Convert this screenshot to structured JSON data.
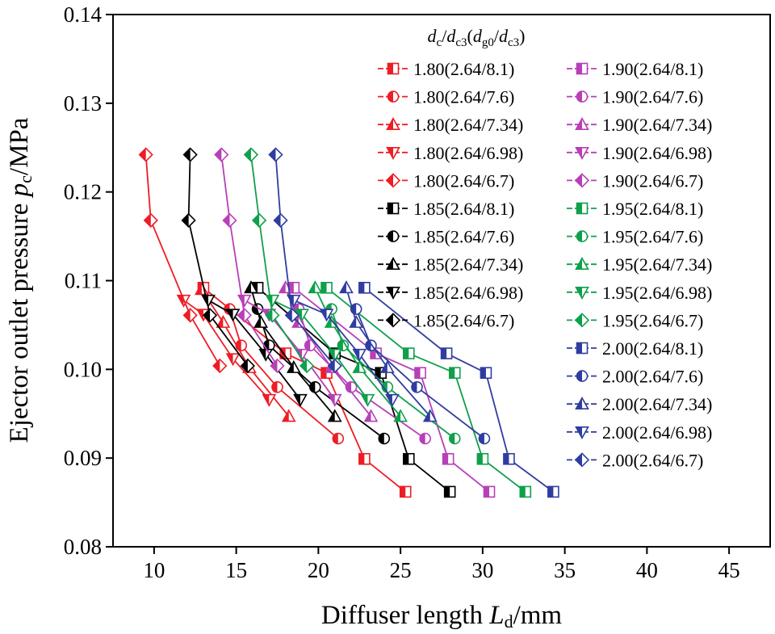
{
  "chart_data": {
    "type": "line",
    "xlabel_main": "Diffuser length ",
    "xlabel_var": "L",
    "xlabel_sub": "d",
    "xlabel_unit": "/mm",
    "ylabel_main": "Ejector outlet pressure ",
    "ylabel_var": "p",
    "ylabel_sub": "c",
    "ylabel_unit": "/MPa",
    "xlim": [
      7.5,
      47.5
    ],
    "ylim": [
      0.08,
      0.14
    ],
    "xticks": [
      10,
      15,
      20,
      25,
      30,
      35,
      40,
      45
    ],
    "yticks": [
      0.08,
      0.09,
      0.1,
      0.11,
      0.12,
      0.13,
      0.14
    ],
    "xtick_labels": [
      "10",
      "15",
      "20",
      "25",
      "30",
      "35",
      "40",
      "45"
    ],
    "ytick_labels": [
      "0.08",
      "0.09",
      "0.10",
      "0.11",
      "0.12",
      "0.13",
      "0.14"
    ],
    "legend_title": "dc/dc3(dg0/dc3)",
    "legend_title_parts": [
      "d",
      "c",
      "/",
      "d",
      "c3",
      "(",
      "d",
      "g0",
      "/",
      "d",
      "c3",
      ")"
    ],
    "colors": {
      "1.80": "#ee1c25",
      "1.85": "#000000",
      "1.90": "#b73fb7",
      "1.95": "#0fa04b",
      "2.00": "#2f3da0"
    },
    "series": [
      {
        "name": "1.80(2.64/8.1)",
        "group": "1.80",
        "marker": "square",
        "points": [
          [
            25.3,
            0.0862
          ],
          [
            22.8,
            0.0899
          ],
          [
            20.5,
            0.0996
          ],
          [
            18.0,
            0.1018
          ],
          [
            13.0,
            0.1092
          ]
        ]
      },
      {
        "name": "1.80(2.64/7.6)",
        "group": "1.80",
        "marker": "circle",
        "points": [
          [
            21.2,
            0.0922
          ],
          [
            17.5,
            0.098
          ],
          [
            15.3,
            0.1027
          ],
          [
            14.6,
            0.1068
          ]
        ]
      },
      {
        "name": "1.80(2.64/7.34)",
        "group": "1.80",
        "marker": "triangle-up",
        "points": [
          [
            18.2,
            0.0947
          ],
          [
            15.8,
            0.1002
          ],
          [
            14.2,
            0.1053
          ],
          [
            12.9,
            0.109
          ]
        ]
      },
      {
        "name": "1.80(2.64/6.98)",
        "group": "1.80",
        "marker": "triangle-down",
        "points": [
          [
            17.0,
            0.0966
          ],
          [
            14.8,
            0.1012
          ],
          [
            13.0,
            0.1062
          ],
          [
            11.8,
            0.1078
          ]
        ]
      },
      {
        "name": "1.80(2.64/6.7)",
        "group": "1.80",
        "marker": "diamond",
        "points": [
          [
            9.5,
            0.1242
          ],
          [
            9.8,
            0.1168
          ],
          [
            12.2,
            0.1061
          ],
          [
            14.0,
            0.1004
          ]
        ]
      },
      {
        "name": "1.85(2.64/8.1)",
        "group": "1.85",
        "marker": "square",
        "points": [
          [
            28.0,
            0.0862
          ],
          [
            25.5,
            0.0899
          ],
          [
            23.8,
            0.0996
          ],
          [
            21.0,
            0.1018
          ],
          [
            16.3,
            0.1092
          ]
        ]
      },
      {
        "name": "1.85(2.64/7.6)",
        "group": "1.85",
        "marker": "circle",
        "points": [
          [
            24.0,
            0.0922
          ],
          [
            19.8,
            0.098
          ],
          [
            17.0,
            0.1027
          ],
          [
            16.3,
            0.1068
          ]
        ]
      },
      {
        "name": "1.85(2.64/7.34)",
        "group": "1.85",
        "marker": "triangle-up",
        "points": [
          [
            21.0,
            0.0947
          ],
          [
            18.5,
            0.1002
          ],
          [
            16.5,
            0.1053
          ],
          [
            15.9,
            0.1092
          ]
        ]
      },
      {
        "name": "1.85(2.64/6.98)",
        "group": "1.85",
        "marker": "triangle-down",
        "points": [
          [
            18.9,
            0.0966
          ],
          [
            16.8,
            0.1017
          ],
          [
            14.8,
            0.1062
          ],
          [
            13.3,
            0.1078
          ]
        ]
      },
      {
        "name": "1.85(2.64/6.7)",
        "group": "1.85",
        "marker": "diamond",
        "points": [
          [
            12.2,
            0.1242
          ],
          [
            12.1,
            0.1168
          ],
          [
            13.4,
            0.1061
          ],
          [
            15.7,
            0.1004
          ]
        ]
      },
      {
        "name": "1.90(2.64/8.1)",
        "group": "1.90",
        "marker": "square",
        "points": [
          [
            30.4,
            0.0862
          ],
          [
            27.9,
            0.0899
          ],
          [
            26.2,
            0.0996
          ],
          [
            23.5,
            0.1018
          ],
          [
            18.5,
            0.1092
          ]
        ]
      },
      {
        "name": "1.90(2.64/7.6)",
        "group": "1.90",
        "marker": "circle",
        "points": [
          [
            26.5,
            0.0922
          ],
          [
            22.0,
            0.098
          ],
          [
            19.5,
            0.1027
          ],
          [
            18.8,
            0.1068
          ]
        ]
      },
      {
        "name": "1.90(2.64/7.34)",
        "group": "1.90",
        "marker": "triangle-up",
        "points": [
          [
            23.2,
            0.0947
          ],
          [
            20.8,
            0.1002
          ],
          [
            18.8,
            0.1053
          ],
          [
            18.0,
            0.1092
          ]
        ]
      },
      {
        "name": "1.90(2.64/6.98)",
        "group": "1.90",
        "marker": "triangle-down",
        "points": [
          [
            21.0,
            0.0966
          ],
          [
            19.0,
            0.1017
          ],
          [
            17.0,
            0.1062
          ],
          [
            15.5,
            0.1078
          ]
        ]
      },
      {
        "name": "1.90(2.64/6.7)",
        "group": "1.90",
        "marker": "diamond",
        "points": [
          [
            14.1,
            0.1242
          ],
          [
            14.6,
            0.1168
          ],
          [
            15.5,
            0.1061
          ],
          [
            17.5,
            0.1004
          ]
        ]
      },
      {
        "name": "1.95(2.64/8.1)",
        "group": "1.95",
        "marker": "square",
        "points": [
          [
            32.6,
            0.0862
          ],
          [
            30.0,
            0.0899
          ],
          [
            28.3,
            0.0996
          ],
          [
            25.5,
            0.1018
          ],
          [
            20.5,
            0.1092
          ]
        ]
      },
      {
        "name": "1.95(2.64/7.6)",
        "group": "1.95",
        "marker": "circle",
        "points": [
          [
            28.3,
            0.0922
          ],
          [
            24.2,
            0.098
          ],
          [
            21.5,
            0.1027
          ],
          [
            20.8,
            0.1068
          ]
        ]
      },
      {
        "name": "1.95(2.64/7.34)",
        "group": "1.95",
        "marker": "triangle-up",
        "points": [
          [
            25.0,
            0.0947
          ],
          [
            22.5,
            0.1002
          ],
          [
            20.8,
            0.1053
          ],
          [
            19.8,
            0.1092
          ]
        ]
      },
      {
        "name": "1.95(2.64/6.98)",
        "group": "1.95",
        "marker": "triangle-down",
        "points": [
          [
            23.0,
            0.0966
          ],
          [
            21.0,
            0.1017
          ],
          [
            19.0,
            0.1062
          ],
          [
            17.2,
            0.1078
          ]
        ]
      },
      {
        "name": "1.95(2.64/6.7)",
        "group": "1.95",
        "marker": "diamond",
        "points": [
          [
            15.9,
            0.1242
          ],
          [
            16.4,
            0.1168
          ],
          [
            17.2,
            0.1061
          ],
          [
            19.3,
            0.1004
          ]
        ]
      },
      {
        "name": "2.00(2.64/8.1)",
        "group": "2.00",
        "marker": "square",
        "points": [
          [
            34.3,
            0.0862
          ],
          [
            31.6,
            0.0899
          ],
          [
            30.2,
            0.0996
          ],
          [
            27.8,
            0.1018
          ],
          [
            22.8,
            0.1092
          ]
        ]
      },
      {
        "name": "2.00(2.64/7.6)",
        "group": "2.00",
        "marker": "circle",
        "points": [
          [
            30.1,
            0.0922
          ],
          [
            26.0,
            0.098
          ],
          [
            23.2,
            0.1027
          ],
          [
            22.3,
            0.1068
          ]
        ]
      },
      {
        "name": "2.00(2.64/7.34)",
        "group": "2.00",
        "marker": "triangle-up",
        "points": [
          [
            26.8,
            0.0947
          ],
          [
            24.2,
            0.1002
          ],
          [
            22.3,
            0.1053
          ],
          [
            21.7,
            0.1092
          ]
        ]
      },
      {
        "name": "2.00(2.64/6.98)",
        "group": "2.00",
        "marker": "triangle-down",
        "points": [
          [
            24.5,
            0.0966
          ],
          [
            22.5,
            0.1017
          ],
          [
            20.5,
            0.1062
          ],
          [
            18.5,
            0.1078
          ]
        ]
      },
      {
        "name": "2.00(2.64/6.7)",
        "group": "2.00",
        "marker": "diamond",
        "points": [
          [
            17.4,
            0.1242
          ],
          [
            17.7,
            0.1168
          ],
          [
            18.4,
            0.1061
          ],
          [
            21.0,
            0.1004
          ]
        ]
      }
    ]
  }
}
